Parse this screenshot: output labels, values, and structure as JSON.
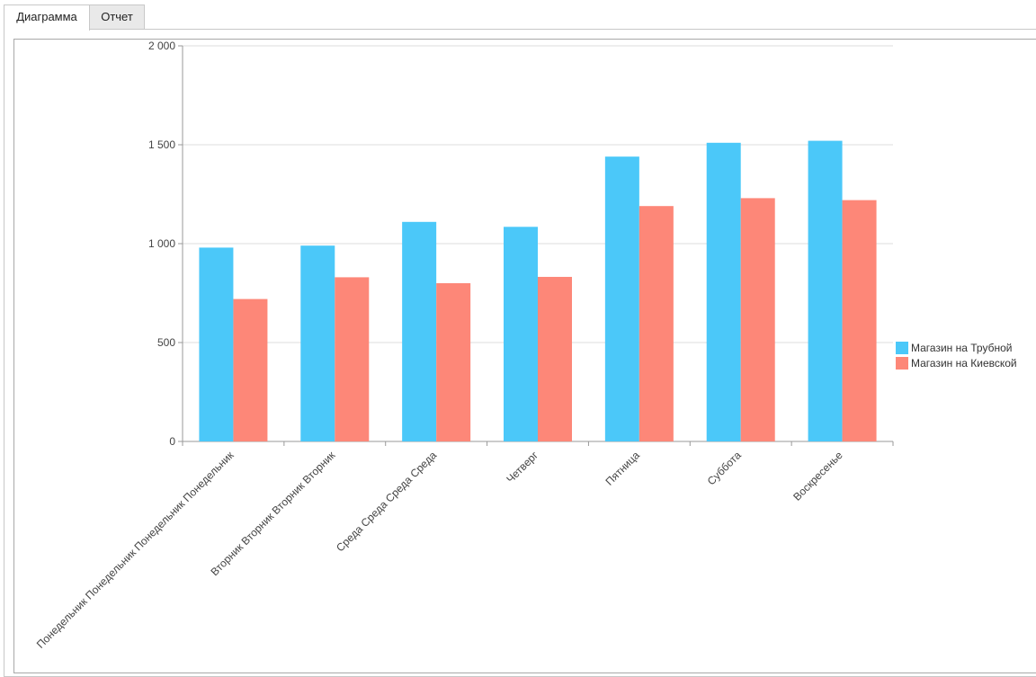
{
  "tabs": [
    {
      "label": "Диаграмма",
      "active": true
    },
    {
      "label": "Отчет",
      "active": false
    }
  ],
  "chart_data": {
    "type": "bar",
    "categories": [
      "Понедельник Понедельник Понедельник Понедельник",
      "Вторник Вторник Вторник Вторник",
      "Среда Среда Среда Среда",
      "Четверг",
      "Пятница",
      "Суббота",
      "Воскресенье"
    ],
    "series": [
      {
        "name": "Магазин на Трубной",
        "color": "#4bc8f9",
        "values": [
          980,
          990,
          1110,
          1085,
          1440,
          1510,
          1520
        ]
      },
      {
        "name": "Магазин на Киевской",
        "color": "#fd8778",
        "values": [
          720,
          830,
          800,
          832,
          1190,
          1230,
          1220
        ]
      }
    ],
    "ylim": [
      0,
      2000
    ],
    "yticks": [
      0,
      500,
      1000,
      1500,
      2000
    ],
    "ytick_labels": [
      "0",
      "500",
      "1 000",
      "1 500",
      "2 000"
    ],
    "grid": true,
    "legend_position": "right"
  }
}
